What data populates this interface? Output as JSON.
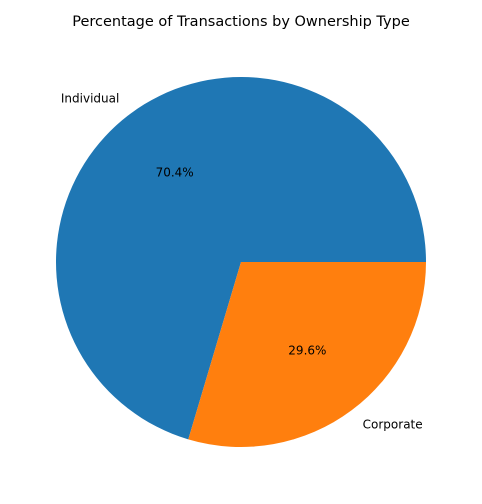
{
  "chart_data": {
    "type": "pie",
    "title": "Percentage of Transactions by Ownership Type",
    "slices": [
      {
        "label": "Individual",
        "value": 70.4,
        "pct_text": "70.4%",
        "color": "#1f77b4"
      },
      {
        "label": "Corporate",
        "value": 29.6,
        "pct_text": "29.6%",
        "color": "#ff7f0e"
      }
    ],
    "start_angle_deg": 0,
    "direction": "counterclockwise",
    "legend": "none"
  }
}
